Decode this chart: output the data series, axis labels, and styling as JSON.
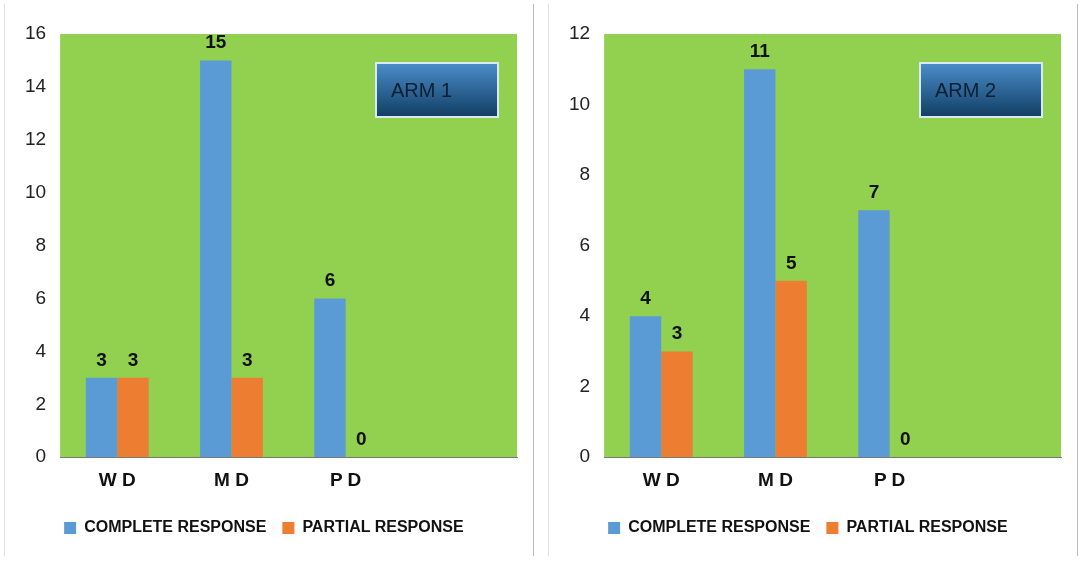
{
  "chart_data": [
    {
      "type": "bar",
      "categories": [
        "W D",
        "M D",
        "P D",
        null
      ],
      "annotations": [
        "ARM 1"
      ],
      "ylim": [
        0,
        16
      ],
      "yticks": [
        0,
        2,
        4,
        6,
        8,
        10,
        12,
        14,
        16
      ],
      "grid": false,
      "legend": "bottom",
      "data_labels": true,
      "series": [
        {
          "name": "COMPLETE RESPONSE",
          "color": "#5b9bd5",
          "values": [
            3,
            15,
            6,
            null
          ]
        },
        {
          "name": "PARTIAL RESPONSE",
          "color": "#ed7d31",
          "values": [
            3,
            3,
            0,
            null
          ]
        }
      ]
    },
    {
      "type": "bar",
      "categories": [
        "W D",
        "M D",
        "P D",
        null
      ],
      "annotations": [
        "ARM 2"
      ],
      "ylim": [
        0,
        12
      ],
      "yticks": [
        0,
        2,
        4,
        6,
        8,
        10,
        12
      ],
      "grid": false,
      "legend": "bottom",
      "data_labels": true,
      "series": [
        {
          "name": "COMPLETE RESPONSE",
          "color": "#5b9bd5",
          "values": [
            4,
            11,
            7,
            null
          ]
        },
        {
          "name": "PARTIAL RESPONSE",
          "color": "#ed7d31",
          "values": [
            3,
            5,
            0,
            null
          ]
        }
      ]
    }
  ]
}
